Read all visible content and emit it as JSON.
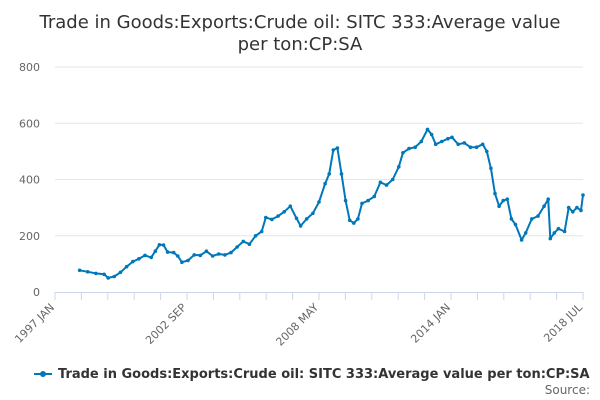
{
  "chart_data": {
    "type": "line",
    "title": "Trade in Goods:Exports:Crude oil: SITC 333:Average value per ton:CP:SA",
    "title_lines": [
      "Trade in Goods:Exports:Crude oil: SITC 333:Average value",
      "per ton:CP:SA"
    ],
    "xlabel": "",
    "ylabel": "",
    "x_range": [
      "1997-01",
      "2018-07"
    ],
    "ylim": [
      0,
      800
    ],
    "y_ticks": [
      0,
      200,
      400,
      600,
      800
    ],
    "x_tick_labels": [
      "1997 JAN",
      "2002 SEP",
      "2008 MAY",
      "2014 JAN",
      "2018 JUL"
    ],
    "grid": "horizontal",
    "legend_position": "bottom",
    "credits": "Source:",
    "series_color": "#0077bb",
    "series": [
      {
        "name": "Trade in Goods:Exports:Crude oil: SITC 333:Average value per ton:CP:SA",
        "points": [
          [
            "1998-01",
            77
          ],
          [
            "1998-05",
            72
          ],
          [
            "1998-09",
            66
          ],
          [
            "1999-01",
            63
          ],
          [
            "1999-03",
            50
          ],
          [
            "1999-06",
            55
          ],
          [
            "1999-09",
            70
          ],
          [
            "1999-12",
            90
          ],
          [
            "2000-03",
            108
          ],
          [
            "2000-06",
            118
          ],
          [
            "2000-09",
            130
          ],
          [
            "2000-12",
            123
          ],
          [
            "2001-02",
            145
          ],
          [
            "2001-04",
            168
          ],
          [
            "2001-06",
            167
          ],
          [
            "2001-08",
            142
          ],
          [
            "2001-11",
            140
          ],
          [
            "2002-01",
            128
          ],
          [
            "2002-03",
            106
          ],
          [
            "2002-06",
            112
          ],
          [
            "2002-09",
            132
          ],
          [
            "2002-12",
            130
          ],
          [
            "2003-03",
            145
          ],
          [
            "2003-06",
            128
          ],
          [
            "2003-09",
            135
          ],
          [
            "2003-12",
            132
          ],
          [
            "2004-03",
            140
          ],
          [
            "2004-06",
            160
          ],
          [
            "2004-09",
            180
          ],
          [
            "2004-12",
            170
          ],
          [
            "2005-03",
            200
          ],
          [
            "2005-06",
            215
          ],
          [
            "2005-08",
            265
          ],
          [
            "2005-11",
            258
          ],
          [
            "2006-02",
            270
          ],
          [
            "2006-05",
            285
          ],
          [
            "2006-08",
            305
          ],
          [
            "2006-11",
            262
          ],
          [
            "2007-01",
            235
          ],
          [
            "2007-04",
            260
          ],
          [
            "2007-07",
            280
          ],
          [
            "2007-10",
            320
          ],
          [
            "2008-01",
            385
          ],
          [
            "2008-03",
            420
          ],
          [
            "2008-05",
            505
          ],
          [
            "2008-07",
            512
          ],
          [
            "2008-09",
            420
          ],
          [
            "2008-11",
            325
          ],
          [
            "2009-01",
            255
          ],
          [
            "2009-03",
            245
          ],
          [
            "2009-05",
            260
          ],
          [
            "2009-07",
            315
          ],
          [
            "2009-10",
            325
          ],
          [
            "2010-01",
            340
          ],
          [
            "2010-04",
            390
          ],
          [
            "2010-07",
            380
          ],
          [
            "2010-10",
            400
          ],
          [
            "2011-01",
            445
          ],
          [
            "2011-03",
            495
          ],
          [
            "2011-06",
            510
          ],
          [
            "2011-09",
            515
          ],
          [
            "2011-12",
            535
          ],
          [
            "2012-03",
            578
          ],
          [
            "2012-05",
            560
          ],
          [
            "2012-07",
            525
          ],
          [
            "2012-10",
            535
          ],
          [
            "2013-01",
            545
          ],
          [
            "2013-03",
            550
          ],
          [
            "2013-06",
            525
          ],
          [
            "2013-09",
            530
          ],
          [
            "2013-12",
            515
          ],
          [
            "2014-03",
            515
          ],
          [
            "2014-06",
            525
          ],
          [
            "2014-08",
            500
          ],
          [
            "2014-10",
            440
          ],
          [
            "2014-12",
            350
          ],
          [
            "2015-02",
            305
          ],
          [
            "2015-04",
            325
          ],
          [
            "2015-06",
            330
          ],
          [
            "2015-08",
            260
          ],
          [
            "2015-10",
            240
          ],
          [
            "2016-01",
            185
          ],
          [
            "2016-03",
            210
          ],
          [
            "2016-06",
            260
          ],
          [
            "2016-09",
            270
          ],
          [
            "2016-12",
            305
          ],
          [
            "2017-02",
            330
          ],
          [
            "2017-03",
            190
          ],
          [
            "2017-05",
            210
          ],
          [
            "2017-07",
            225
          ],
          [
            "2017-10",
            215
          ],
          [
            "2017-12",
            300
          ],
          [
            "2018-02",
            285
          ],
          [
            "2018-04",
            300
          ],
          [
            "2018-06",
            290
          ],
          [
            "2018-07",
            345
          ]
        ]
      }
    ]
  }
}
